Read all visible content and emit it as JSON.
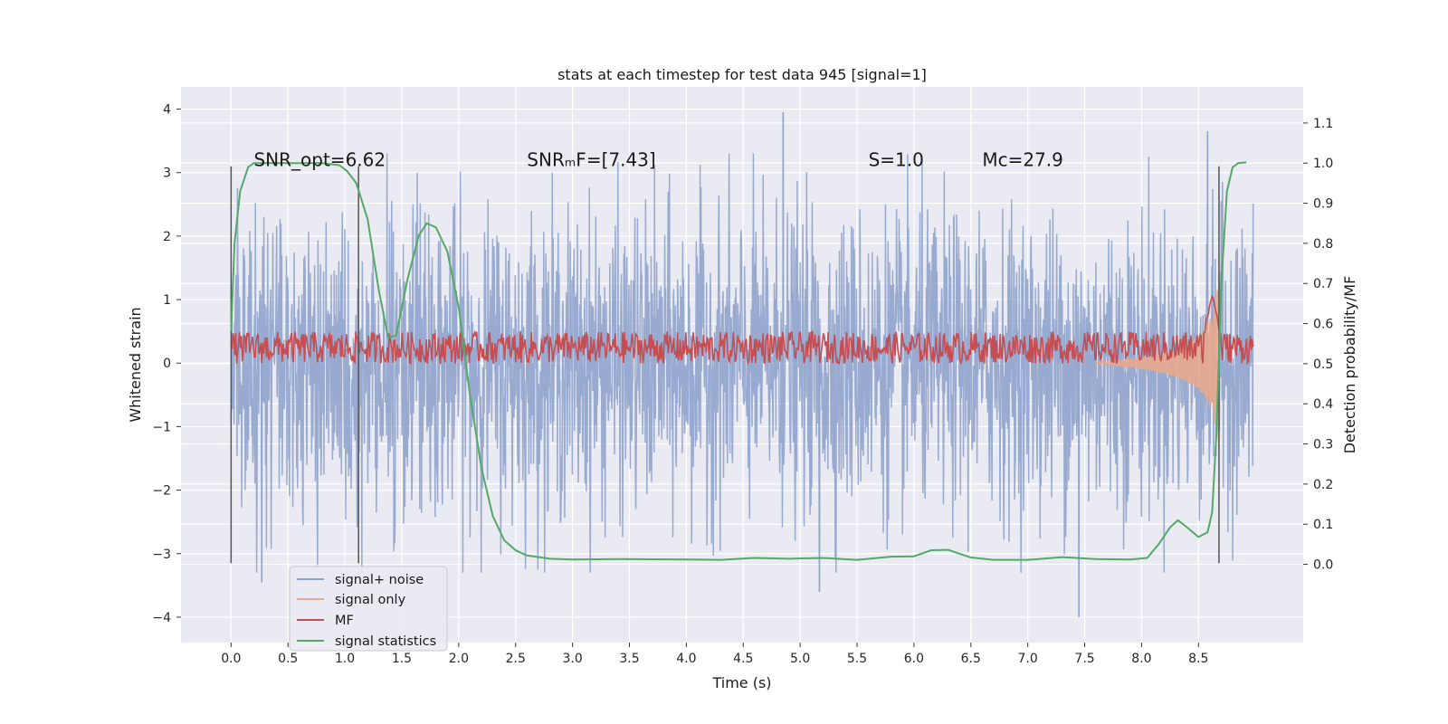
{
  "chart_data": {
    "type": "line",
    "title": "stats at each timestep for test data 945 [signal=1]",
    "xlabel": "Time (s)",
    "ylabel": "Whitened strain",
    "y2label": "Detection probability/MF",
    "xlim": [
      -0.44,
      9.42
    ],
    "ylim": [
      -4.4,
      4.35
    ],
    "y2lim": [
      -0.195,
      1.19
    ],
    "xticks": [
      0.0,
      0.5,
      1.0,
      1.5,
      2.0,
      2.5,
      3.0,
      3.5,
      4.0,
      4.5,
      5.0,
      5.5,
      6.0,
      6.5,
      7.0,
      7.5,
      8.0,
      8.5
    ],
    "xtick_labels": [
      "0.0",
      "0.5",
      "1.0",
      "1.5",
      "2.0",
      "2.5",
      "3.0",
      "3.5",
      "4.0",
      "4.5",
      "5.0",
      "5.5",
      "6.0",
      "6.5",
      "7.0",
      "7.5",
      "8.0",
      "8.5"
    ],
    "yticks": [
      4,
      3,
      2,
      1,
      0,
      -1,
      -2,
      -3,
      -4
    ],
    "ytick_labels": [
      "4",
      "3",
      "2",
      "1",
      "0",
      "−1",
      "−2",
      "−3",
      "−4"
    ],
    "y2ticks": [
      1.1,
      1.0,
      0.9,
      0.8,
      0.7,
      0.6,
      0.5,
      0.4,
      0.3,
      0.2,
      0.1,
      0.0
    ],
    "y2tick_labels": [
      "1.1",
      "1.0",
      "0.9",
      "0.8",
      "0.7",
      "0.6",
      "0.5",
      "0.4",
      "0.3",
      "0.2",
      "0.1",
      "0.0"
    ],
    "annotations": [
      {
        "id": "snr-opt",
        "text": "SNR_opt=6.62",
        "x": 0.2,
        "y": 3.1
      },
      {
        "id": "snr-mf",
        "text": "SNRₘF=[7.43]",
        "x": 2.6,
        "y": 3.1
      },
      {
        "id": "s-stat",
        "text": "S=1.0",
        "x": 5.6,
        "y": 3.1
      },
      {
        "id": "chirp-mass",
        "text": "Mᴄ=27.9",
        "x": 6.6,
        "y": 3.1
      }
    ],
    "vertical_lines": [
      {
        "x": 0.0,
        "y_range": [
          -3.15,
          3.1
        ]
      },
      {
        "x": 1.12,
        "y_range": [
          -3.15,
          3.1
        ]
      },
      {
        "x": 8.68,
        "y_range": [
          -3.15,
          3.1
        ]
      }
    ],
    "legend": {
      "position": "lower-left",
      "entries": [
        {
          "label": "signal+ noise",
          "color": "#8fa3cc"
        },
        {
          "label": "signal only",
          "color": "#e8a98c"
        },
        {
          "label": "MF",
          "color": "#c44e52"
        },
        {
          "label": "signal statistics",
          "color": "#55a868"
        }
      ]
    },
    "series": [
      {
        "name": "signal+ noise",
        "axis": "left",
        "color": "#8fa3cc",
        "x_range": [
          0.0,
          8.98
        ],
        "band_approx": [
          -3.2,
          3.3
        ],
        "notable_peaks": [
          {
            "x": 4.85,
            "y": 3.95
          },
          {
            "x": 7.45,
            "y": -4.0
          },
          {
            "x": 5.17,
            "y": -3.6
          },
          {
            "x": 0.27,
            "y": -3.45
          },
          {
            "x": 8.58,
            "y": 3.65
          }
        ]
      },
      {
        "name": "signal only",
        "axis": "left",
        "color": "#e8a98c",
        "x": [
          7.6,
          7.9,
          8.1,
          8.3,
          8.45,
          8.55,
          8.6,
          8.63,
          8.66,
          8.68
        ],
        "amplitude": [
          0.02,
          0.06,
          0.12,
          0.22,
          0.35,
          0.5,
          0.68,
          0.85,
          1.1,
          1.4
        ]
      },
      {
        "name": "MF",
        "axis": "right",
        "color": "#c44e52",
        "x_range": [
          0.0,
          8.98
        ],
        "baseline": 0.54,
        "jitter": 0.04,
        "spike": {
          "x": 8.62,
          "y": 0.68
        }
      },
      {
        "name": "signal statistics",
        "axis": "right",
        "color": "#55a868",
        "x": [
          0.0,
          0.03,
          0.08,
          0.15,
          0.2,
          0.3,
          0.5,
          0.8,
          0.95,
          1.02,
          1.1,
          1.2,
          1.3,
          1.38,
          1.45,
          1.55,
          1.65,
          1.72,
          1.8,
          1.9,
          2.0,
          2.1,
          2.2,
          2.3,
          2.4,
          2.5,
          2.6,
          2.8,
          3.0,
          3.4,
          4.0,
          4.3,
          4.6,
          4.9,
          5.2,
          5.5,
          5.8,
          6.0,
          6.15,
          6.3,
          6.5,
          6.7,
          7.0,
          7.3,
          7.6,
          7.9,
          8.05,
          8.15,
          8.25,
          8.32,
          8.4,
          8.5,
          8.58,
          8.62,
          8.66,
          8.7,
          8.75,
          8.8,
          8.85,
          8.92
        ],
        "y": [
          0.58,
          0.8,
          0.93,
          0.99,
          1.0,
          1.0,
          1.0,
          1.0,
          0.995,
          0.98,
          0.95,
          0.86,
          0.68,
          0.565,
          0.57,
          0.71,
          0.82,
          0.85,
          0.84,
          0.78,
          0.64,
          0.42,
          0.24,
          0.12,
          0.06,
          0.035,
          0.022,
          0.014,
          0.012,
          0.013,
          0.012,
          0.011,
          0.016,
          0.014,
          0.016,
          0.011,
          0.019,
          0.02,
          0.035,
          0.036,
          0.017,
          0.011,
          0.011,
          0.018,
          0.013,
          0.012,
          0.016,
          0.05,
          0.092,
          0.11,
          0.092,
          0.068,
          0.08,
          0.13,
          0.34,
          0.7,
          0.93,
          0.99,
          1.0,
          1.002
        ]
      }
    ]
  }
}
